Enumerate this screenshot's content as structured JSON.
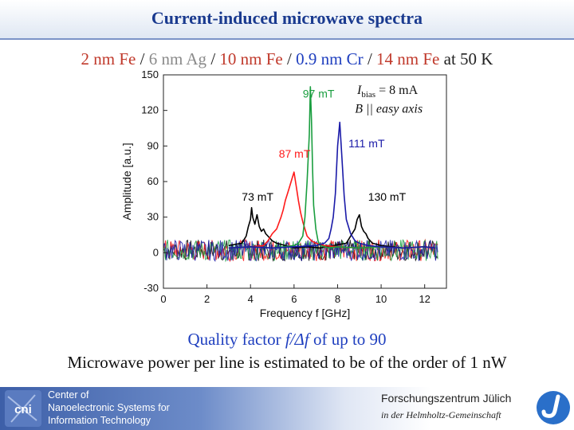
{
  "header": {
    "title": "Current-induced microwave spectra"
  },
  "stack": {
    "p1": "2 nm Fe",
    "sep1": " / ",
    "p2": "6 nm Ag",
    "sep2": " / ",
    "p3": "10 nm Fe",
    "sep3": " / ",
    "p4": "0.9 nm Cr",
    "sep4": " / ",
    "p5": "14 nm Fe",
    "p6": " at 50 K"
  },
  "notes": {
    "quality_prefix": "Quality factor ",
    "quality_formula": "f/Δf",
    "quality_suffix": " of up to 90",
    "power": "Microwave power per line is estimated to be of the order of 1 nW"
  },
  "footer": {
    "center_line1": "Center of",
    "center_line2": "Nanoelectronic Systems for",
    "center_line3": "Information Technology",
    "cni_logo_text": "cni",
    "fzj": "Forschungszentrum Jülich",
    "helmholtz": "in der Helmholtz-Gemeinschaft"
  },
  "chart_data": {
    "type": "line",
    "xlabel": "Frequency f [GHz]",
    "ylabel": "Amplitude [a.u.]",
    "xlim": [
      0,
      13
    ],
    "ylim": [
      -30,
      150
    ],
    "xticks": [
      0,
      2,
      4,
      6,
      8,
      10,
      12
    ],
    "yticks": [
      -30,
      0,
      30,
      60,
      90,
      120,
      150
    ],
    "annotation_line1_main": "I",
    "annotation_line1_sub": "bias",
    "annotation_line1_rest": " = 8 mA",
    "annotation_line2": "B || easy axis",
    "series": [
      {
        "name": "73 mT",
        "color": "#000000",
        "x": [
          3.0,
          3.6,
          3.8,
          3.9,
          4.0,
          4.05,
          4.1,
          4.2,
          4.3,
          4.4,
          4.5,
          4.6,
          4.7,
          4.8,
          5.0,
          5.2,
          5.6,
          6.0,
          6.6,
          7.2,
          7.8,
          8.4,
          8.6,
          8.8,
          8.9,
          9.0,
          9.1,
          9.2,
          9.3,
          9.4,
          9.6,
          10.0,
          11.0,
          12.0,
          12.5
        ],
        "y": [
          6,
          8,
          14,
          22,
          28,
          38,
          30,
          24,
          32,
          22,
          18,
          20,
          16,
          14,
          10,
          8,
          6,
          4,
          5,
          4,
          6,
          8,
          14,
          20,
          28,
          32,
          22,
          18,
          16,
          12,
          8,
          6,
          4,
          5,
          4
        ]
      },
      {
        "name": "87 mT",
        "color": "#ff1a1a",
        "x": [
          3.0,
          4.0,
          4.6,
          4.8,
          5.0,
          5.2,
          5.4,
          5.5,
          5.6,
          5.7,
          5.8,
          5.9,
          6.0,
          6.1,
          6.2,
          6.3,
          6.4,
          6.5,
          6.6,
          6.8,
          7.0,
          7.4,
          8.0,
          9.0,
          10.0,
          11.0,
          12.0,
          12.5
        ],
        "y": [
          4,
          5,
          6,
          10,
          16,
          20,
          30,
          36,
          44,
          50,
          56,
          62,
          68,
          56,
          44,
          34,
          26,
          20,
          14,
          10,
          8,
          6,
          5,
          4,
          5,
          4,
          5,
          4
        ]
      },
      {
        "name": "97 mT",
        "color": "#1a9e3f",
        "x": [
          3.0,
          4.0,
          5.0,
          6.0,
          6.2,
          6.4,
          6.5,
          6.6,
          6.7,
          6.75,
          6.8,
          6.85,
          6.9,
          7.0,
          7.1,
          7.2,
          7.4,
          7.6,
          8.0,
          9.0,
          10.0,
          11.0,
          12.0,
          12.5
        ],
        "y": [
          4,
          5,
          4,
          6,
          8,
          14,
          30,
          60,
          100,
          140,
          112,
          70,
          40,
          20,
          10,
          6,
          5,
          4,
          5,
          4,
          5,
          4,
          5,
          4
        ]
      },
      {
        "name": "111 mT",
        "color": "#1a1aa8",
        "x": [
          3.0,
          4.0,
          5.0,
          6.0,
          7.0,
          7.4,
          7.6,
          7.7,
          7.8,
          7.9,
          8.0,
          8.1,
          8.2,
          8.3,
          8.4,
          8.6,
          8.8,
          9.0,
          9.4,
          10.0,
          11.0,
          12.0,
          12.5
        ],
        "y": [
          4,
          5,
          4,
          5,
          6,
          8,
          12,
          20,
          30,
          50,
          90,
          110,
          80,
          48,
          28,
          16,
          10,
          8,
          6,
          5,
          4,
          5,
          4
        ]
      }
    ],
    "labels": [
      {
        "text": "73 mT",
        "x": 3.6,
        "y": 44,
        "color": "#000000"
      },
      {
        "text": "87 mT",
        "x": 5.3,
        "y": 80,
        "color": "#ff1a1a"
      },
      {
        "text": "97 mT",
        "x": 6.4,
        "y": 131,
        "color": "#1a9e3f"
      },
      {
        "text": "111 mT",
        "x": 8.5,
        "y": 89,
        "color": "#1a1aa8"
      },
      {
        "text": "130 mT",
        "x": 9.4,
        "y": 44,
        "color": "#000000"
      }
    ],
    "grid": false
  }
}
